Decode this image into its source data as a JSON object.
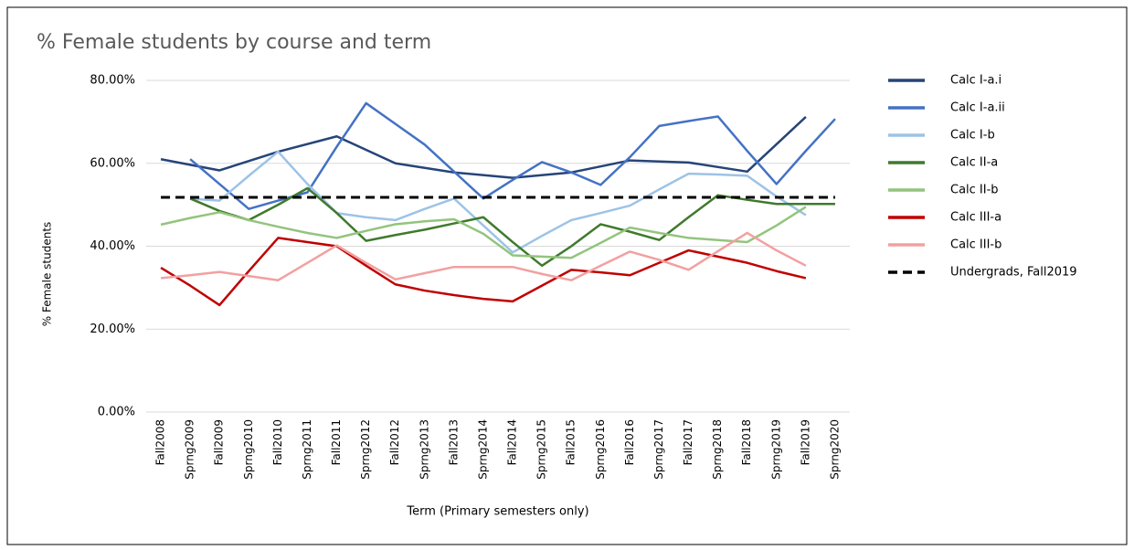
{
  "chart_data": {
    "type": "line",
    "title": "% Female students by course and term",
    "xlabel": "Term (Primary semesters only)",
    "ylabel": "% Female students",
    "categories": [
      "Fall2008",
      "Sprng2009",
      "Fall2009",
      "Sprng2010",
      "Fall2010",
      "Sprng2011",
      "Fall2011",
      "Sprng2012",
      "Fall2012",
      "Sprng2013",
      "Fall2013",
      "Sprng2014",
      "Fall2014",
      "Sprng2015",
      "Fall2015",
      "Sprng2016",
      "Fall2016",
      "Sprng2017",
      "Fall2017",
      "Sprng2018",
      "Fall2018",
      "Sprng2019",
      "Fall2019",
      "Sprng2020"
    ],
    "ylim": [
      0,
      80
    ],
    "yticks": [
      {
        "value": 0,
        "label": "0.00%"
      },
      {
        "value": 20,
        "label": "20.00%"
      },
      {
        "value": 40,
        "label": "40.00%"
      },
      {
        "value": 60,
        "label": "60.00%"
      },
      {
        "value": 80,
        "label": "80.00%"
      }
    ],
    "grid": true,
    "legend": "right",
    "series": [
      {
        "name": "Calc I-a.i",
        "color": "#264478",
        "x": [
          "Fall2008",
          "Fall2009",
          "Fall2010",
          "Fall2011",
          "Fall2012",
          "Fall2013",
          "Fall2014",
          "Fall2015",
          "Fall2016",
          "Fall2017",
          "Fall2018",
          "Fall2019"
        ],
        "values": [
          61,
          58.3,
          62.8,
          66.5,
          60,
          57.8,
          56.5,
          57.8,
          60.7,
          60.2,
          58,
          71.2
        ]
      },
      {
        "name": "Calc I-a.ii",
        "color": "#4472c4",
        "values": [
          null,
          61,
          55,
          49,
          51,
          53,
          64,
          74.5,
          69.5,
          64.5,
          58,
          51.5,
          56,
          60.3,
          57.8,
          54.8,
          61.5,
          69,
          70.2,
          71.3,
          63,
          55,
          63,
          70.7
        ]
      },
      {
        "name": "Calc I-b",
        "color": "#9dc3e6",
        "values": [
          null,
          51.5,
          51,
          57,
          62.8,
          55,
          48,
          47,
          46.3,
          49,
          51.5,
          45,
          38.5,
          42.5,
          46.3,
          48,
          49.8,
          53.7,
          57.5,
          57.3,
          57,
          52,
          47.5,
          null
        ]
      },
      {
        "name": "Calc II-a",
        "color": "#3f7a2c",
        "values": [
          null,
          51.5,
          48.5,
          46.3,
          50,
          54,
          48,
          41.3,
          42.7,
          44,
          45.5,
          47,
          41,
          35.3,
          40,
          45.3,
          43.5,
          41.5,
          47,
          52.3,
          51.2,
          50.2,
          50.2,
          50.2
        ]
      },
      {
        "name": "Calc II-b",
        "color": "#93c47d",
        "values": [
          45.2,
          46.8,
          48.2,
          46.3,
          44.7,
          43.2,
          42,
          43.7,
          45.3,
          46,
          46.5,
          43,
          37.8,
          37.5,
          37.2,
          40.8,
          44.5,
          43.2,
          42,
          41.5,
          41,
          45,
          49.5,
          null
        ]
      },
      {
        "name": "Calc III-a",
        "color": "#c00000",
        "values": [
          34.8,
          30.5,
          25.8,
          34,
          42,
          41,
          40,
          35.3,
          30.8,
          29.3,
          28.2,
          27.3,
          26.7,
          30.5,
          34.3,
          33.7,
          33,
          36,
          39,
          37.5,
          36,
          34,
          32.3,
          null
        ]
      },
      {
        "name": "Calc III-b",
        "color": "#f2a0a0",
        "values": [
          32.3,
          33,
          33.8,
          32.8,
          31.8,
          36,
          40.2,
          36,
          32,
          33.5,
          35,
          35,
          35,
          33.3,
          31.8,
          35.3,
          38.7,
          36.7,
          34.3,
          38.8,
          43.2,
          39,
          35.3,
          null
        ]
      },
      {
        "name": "Undergrads, Fall2019",
        "color": "#000000",
        "dashed": true,
        "values": [
          51.8,
          51.8,
          51.8,
          51.8,
          51.8,
          51.8,
          51.8,
          51.8,
          51.8,
          51.8,
          51.8,
          51.8,
          51.8,
          51.8,
          51.8,
          51.8,
          51.8,
          51.8,
          51.8,
          51.8,
          51.8,
          51.8,
          51.8,
          51.8
        ]
      }
    ]
  }
}
